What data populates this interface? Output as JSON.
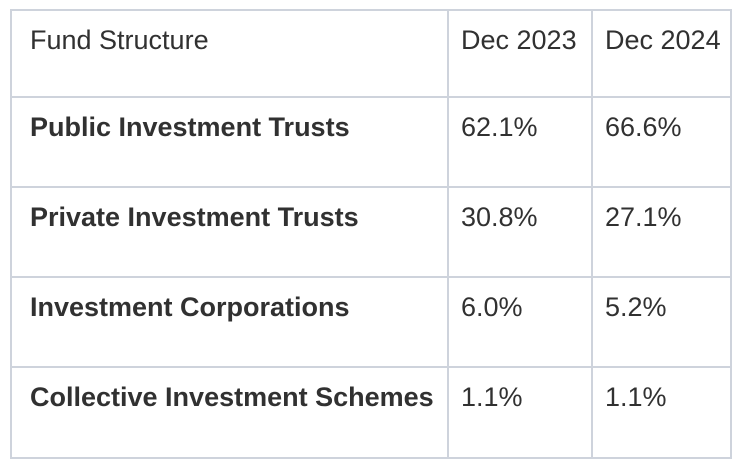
{
  "table": {
    "columns": [
      "Fund Structure",
      "Dec 2023",
      "Dec 2024"
    ],
    "rows": [
      {
        "label": "Public Investment Trusts",
        "dec_2023": "62.1%",
        "dec_2024": "66.6%"
      },
      {
        "label": "Private Investment Trusts",
        "dec_2023": "30.8%",
        "dec_2024": "27.1%"
      },
      {
        "label": "Investment Corporations",
        "dec_2023": "6.0%",
        "dec_2024": "5.2%"
      },
      {
        "label": "Collective Investment Schemes",
        "dec_2023": "1.1%",
        "dec_2024": "1.1%"
      }
    ],
    "colors": {
      "border": "#ced3dc",
      "text": "#313131",
      "label_text": "#313131",
      "background": "#ffffff"
    }
  },
  "chart_data": {
    "type": "table",
    "title": "",
    "categories": [
      "Public Investment Trusts",
      "Private Investment Trusts",
      "Investment Corporations",
      "Collective Investment Schemes"
    ],
    "series": [
      {
        "name": "Dec 2023",
        "values": [
          62.1,
          30.8,
          6.0,
          1.1
        ]
      },
      {
        "name": "Dec 2024",
        "values": [
          66.6,
          27.1,
          5.2,
          1.1
        ]
      }
    ],
    "unit": "%",
    "first_column_header": "Fund Structure",
    "layout": {
      "grid": "full-borders",
      "header_row": true
    }
  }
}
